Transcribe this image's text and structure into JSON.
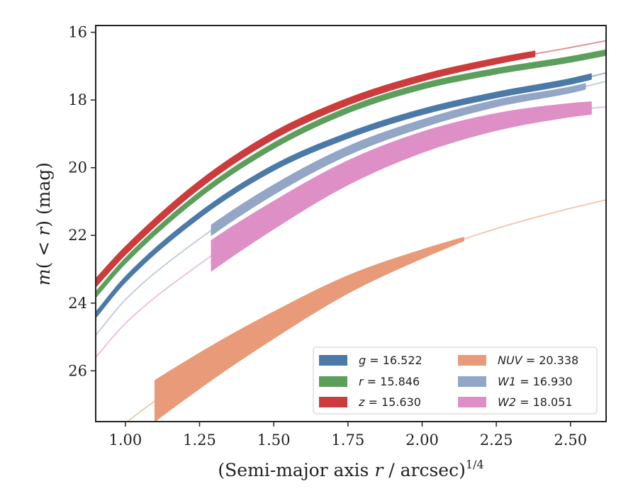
{
  "chart_data": {
    "type": "line",
    "title": "",
    "xlabel": "(Semi-major axis r / arcsec)",
    "xlabel_parts": {
      "pre": "(Semi-major axis ",
      "var": "r",
      "post": " / arcsec)",
      "sup": "1/4"
    },
    "ylabel": "m(<r) (mag)",
    "ylabel_parts": {
      "m": "m",
      "open": "(",
      "lt": " < ",
      "r": "r",
      "close": ")",
      "unit": " (mag)"
    },
    "xlim": [
      0.9,
      2.62
    ],
    "ylim": [
      27.5,
      15.8
    ],
    "y_inverted": true,
    "xticks": [
      1.0,
      1.25,
      1.5,
      1.75,
      2.0,
      2.25,
      2.5
    ],
    "xtick_labels": [
      "1.00",
      "1.25",
      "1.50",
      "1.75",
      "2.00",
      "2.25",
      "2.50"
    ],
    "yticks": [
      16,
      18,
      20,
      22,
      24,
      26
    ],
    "ytick_labels": [
      "16",
      "18",
      "20",
      "22",
      "24",
      "26"
    ],
    "grid": false,
    "legend_position": "bottom-right",
    "series": [
      {
        "name": "g",
        "label_var": "g",
        "label_value": " = 16.522",
        "color": "#4c7aa8",
        "x": [
          0.9,
          1.0,
          1.25,
          1.5,
          1.75,
          2.0,
          2.25,
          2.5,
          2.62
        ],
        "y": [
          24.35,
          23.3,
          21.4,
          20.0,
          19.05,
          18.35,
          17.85,
          17.45,
          17.2
        ],
        "band": [
          0.9,
          2.57
        ],
        "width": [
          0.08,
          0.08
        ]
      },
      {
        "name": "r",
        "label_var": "r",
        "label_value": " = 15.846",
        "color": "#5c9f5c",
        "x": [
          0.9,
          1.0,
          1.25,
          1.5,
          1.75,
          2.0,
          2.25,
          2.5,
          2.62
        ],
        "y": [
          23.75,
          22.75,
          20.8,
          19.35,
          18.3,
          17.6,
          17.15,
          16.8,
          16.6
        ],
        "band": [
          0.9,
          2.62
        ],
        "width": [
          0.08,
          0.08
        ]
      },
      {
        "name": "z",
        "label_var": "z",
        "label_value": " = 15.630",
        "color": "#cc3c3c",
        "x": [
          0.9,
          1.0,
          1.25,
          1.5,
          1.75,
          2.0,
          2.25,
          2.5,
          2.62
        ],
        "y": [
          23.4,
          22.45,
          20.5,
          19.05,
          18.05,
          17.35,
          16.85,
          16.45,
          16.25
        ],
        "band": [
          0.9,
          2.38
        ],
        "width": [
          0.12,
          0.08
        ]
      },
      {
        "name": "NUV",
        "label_var": "NUV",
        "label_value": " = 20.338",
        "color": "#e99a78",
        "x": [
          0.9,
          1.0,
          1.25,
          1.5,
          1.75,
          2.0,
          2.25,
          2.5,
          2.62
        ],
        "y": [
          28.35,
          27.55,
          26.0,
          24.65,
          23.45,
          22.55,
          21.8,
          21.2,
          20.95
        ],
        "band": [
          1.1,
          2.14
        ],
        "width": [
          0.6,
          0.05
        ]
      },
      {
        "name": "W1",
        "label_var": "W1",
        "label_value": " = 16.930",
        "color": "#93a6c6",
        "x": [
          0.9,
          1.0,
          1.25,
          1.5,
          1.75,
          2.0,
          2.25,
          2.5,
          2.62
        ],
        "y": [
          24.95,
          23.9,
          22.1,
          20.65,
          19.5,
          18.7,
          18.1,
          17.7,
          17.45
        ],
        "band": [
          1.29,
          2.55
        ],
        "width": [
          0.15,
          0.08
        ]
      },
      {
        "name": "W2",
        "label_var": "W2",
        "label_value": " = 18.051",
        "color": "#de90c6",
        "x": [
          0.9,
          1.0,
          1.25,
          1.5,
          1.75,
          2.0,
          2.25,
          2.5,
          2.62
        ],
        "y": [
          25.6,
          24.6,
          22.85,
          21.4,
          20.15,
          19.25,
          18.65,
          18.3,
          18.2
        ],
        "band": [
          1.29,
          2.57
        ],
        "width": [
          0.45,
          0.18
        ]
      }
    ]
  }
}
